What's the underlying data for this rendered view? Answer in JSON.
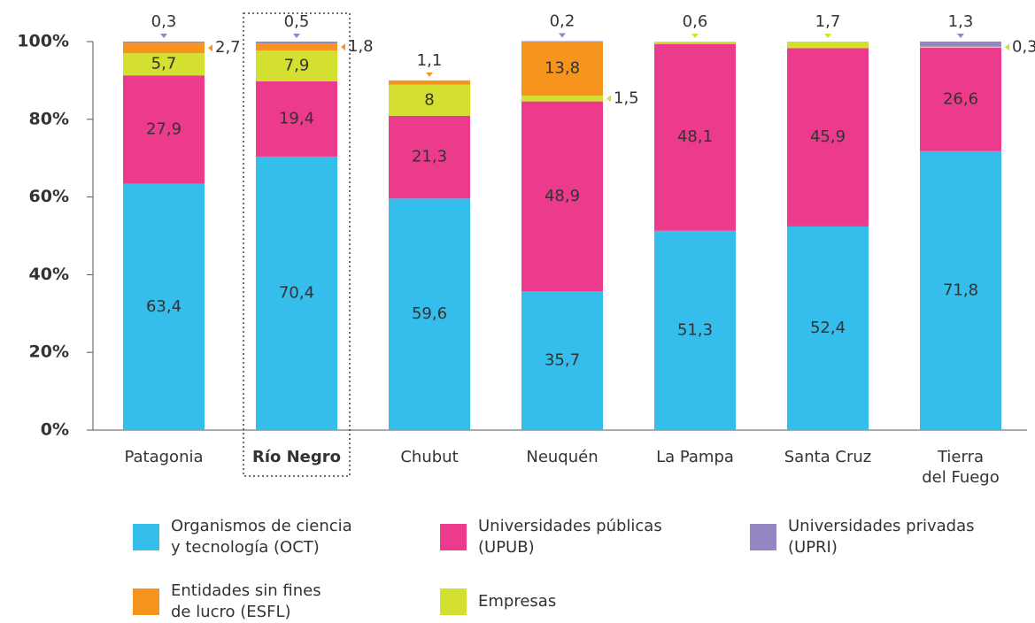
{
  "chart_data": {
    "type": "stacked_bar",
    "categories": [
      "Patagonia",
      "Río Negro",
      "Chubut",
      "Neuquén",
      "La Pampa",
      "Santa Cruz",
      "Tierra\ndel Fuego"
    ],
    "ylim": [
      0,
      100
    ],
    "yticks": [
      {
        "value": 0,
        "label": "0%"
      },
      {
        "value": 20,
        "label": "20%"
      },
      {
        "value": 40,
        "label": "40%"
      },
      {
        "value": 60,
        "label": "60%"
      },
      {
        "value": 80,
        "label": "80%"
      },
      {
        "value": 100,
        "label": "100%"
      }
    ],
    "legend": "bottom",
    "series": [
      {
        "name": "Organismos de ciencia\ny tecnología (OCT)",
        "color": "#35bdec",
        "stack_order": 0,
        "values": [
          63.4,
          70.4,
          59.6,
          35.7,
          51.3,
          52.4,
          71.8
        ],
        "value_labels": [
          "63,4",
          "70,4",
          "59,6",
          "35,7",
          "51,3",
          "52,4",
          "71,8"
        ]
      },
      {
        "name": "Universidades públicas\n(UPUB)",
        "color": "#ec3b8d",
        "stack_order": 1,
        "values": [
          27.9,
          19.4,
          21.3,
          48.9,
          48.1,
          45.9,
          26.6
        ],
        "value_labels": [
          "27,9",
          "19,4",
          "21,3",
          "48,9",
          "48,1",
          "45,9",
          "26,6"
        ]
      },
      {
        "name": "Universidades privadas\n(UPRI)",
        "color": "#9486c3",
        "stack_order": 4,
        "values": [
          0.3,
          0.5,
          null,
          0.2,
          null,
          null,
          1.3
        ],
        "value_labels": [
          "0,3",
          "0,5",
          null,
          "0,2",
          null,
          null,
          "1,3"
        ]
      },
      {
        "name": "Entidades sin fines\nde lucro (ESFL)",
        "color": "#f7941d",
        "stack_order": 3,
        "values": [
          2.7,
          1.8,
          1.1,
          13.8,
          null,
          null,
          null
        ],
        "value_labels": [
          "2,7",
          "1,8",
          "1,1",
          "13,8",
          null,
          null,
          null
        ]
      },
      {
        "name": "Empresas",
        "color": "#d4e030",
        "stack_order": 2,
        "values": [
          5.7,
          7.9,
          8,
          1.5,
          0.6,
          1.7,
          0.3
        ],
        "value_labels": [
          "5,7",
          "7,9",
          "8",
          "1,5",
          "0,6",
          "1,7",
          "0,3"
        ]
      }
    ]
  }
}
